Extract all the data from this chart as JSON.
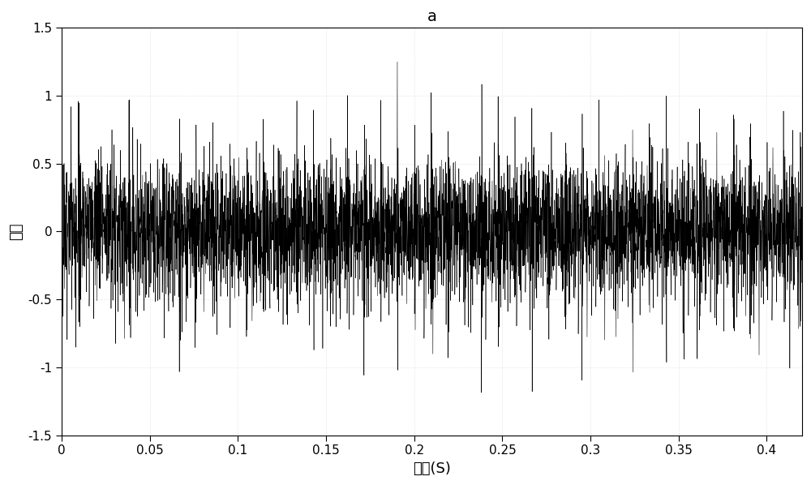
{
  "title": "a",
  "xlabel": "时间(S)",
  "ylabel": "幅値",
  "xlim": [
    0,
    0.42
  ],
  "ylim": [
    -1.5,
    1.5
  ],
  "xticks": [
    0,
    0.05,
    0.1,
    0.15,
    0.2,
    0.25,
    0.3,
    0.35,
    0.4
  ],
  "yticks": [
    -1.5,
    -1.0,
    -0.5,
    0,
    0.5,
    1.0,
    1.5
  ],
  "line_color": "#000000",
  "line_width": 0.4,
  "background_color": "#ffffff",
  "sample_rate": 12000,
  "duration": 0.42,
  "seed": 42,
  "title_fontsize": 14,
  "label_fontsize": 13,
  "tick_fontsize": 11
}
